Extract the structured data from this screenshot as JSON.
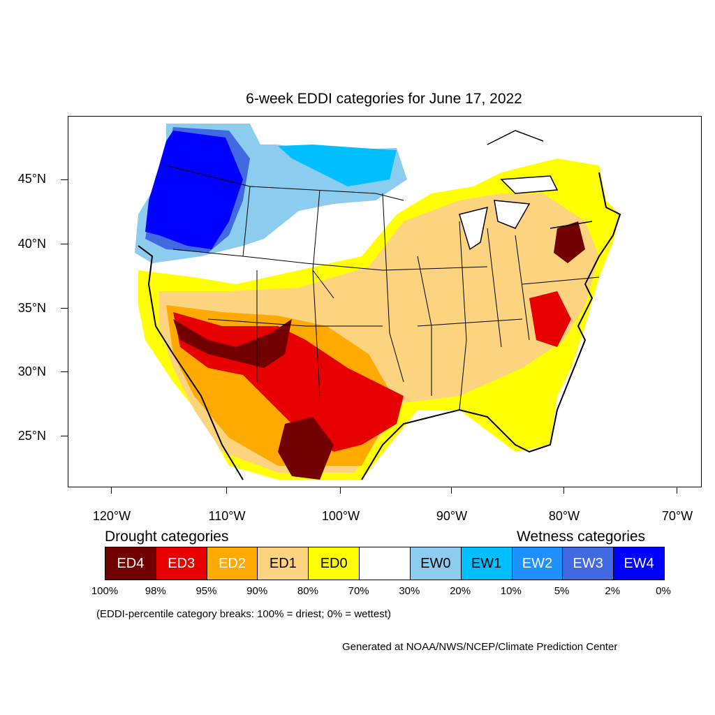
{
  "title": "6-week EDDI categories for June 17, 2022",
  "lat_labels": [
    "45°N",
    "40°N",
    "35°N",
    "30°N",
    "25°N"
  ],
  "lon_labels": [
    "120°W",
    "110°W",
    "100°W",
    "90°W",
    "80°W",
    "70°W"
  ],
  "drought_title": "Drought categories",
  "wetness_title": "Wetness categories",
  "legend": [
    {
      "label": "ED4",
      "color": "#730000",
      "text_color": "#ffffff"
    },
    {
      "label": "ED3",
      "color": "#e60000",
      "text_color": "#ffffff"
    },
    {
      "label": "ED2",
      "color": "#ffaa00",
      "text_color": "#ffffff"
    },
    {
      "label": "ED1",
      "color": "#fcd37f",
      "text_color": "#000000"
    },
    {
      "label": "ED0",
      "color": "#ffff00",
      "text_color": "#000000"
    },
    {
      "label": "",
      "color": "#ffffff",
      "text_color": "#000000"
    },
    {
      "label": "EW0",
      "color": "#8ccdef",
      "text_color": "#000000"
    },
    {
      "label": "EW1",
      "color": "#00bfff",
      "text_color": "#000000"
    },
    {
      "label": "EW2",
      "color": "#1e90ff",
      "text_color": "#ffffff"
    },
    {
      "label": "EW3",
      "color": "#4169e1",
      "text_color": "#ffffff"
    },
    {
      "label": "EW4",
      "color": "#0000ff",
      "text_color": "#ffffff"
    }
  ],
  "percent_labels": [
    "100%",
    "98%",
    "95%",
    "90%",
    "80%",
    "70%",
    "30%",
    "20%",
    "10%",
    "5%",
    "2%",
    "0%"
  ],
  "note": "(EDDI-percentile category breaks: 100% = driest; 0% = wettest)",
  "credit": "Generated at NOAA/NWS/NCEP/Climate Prediction Center"
}
